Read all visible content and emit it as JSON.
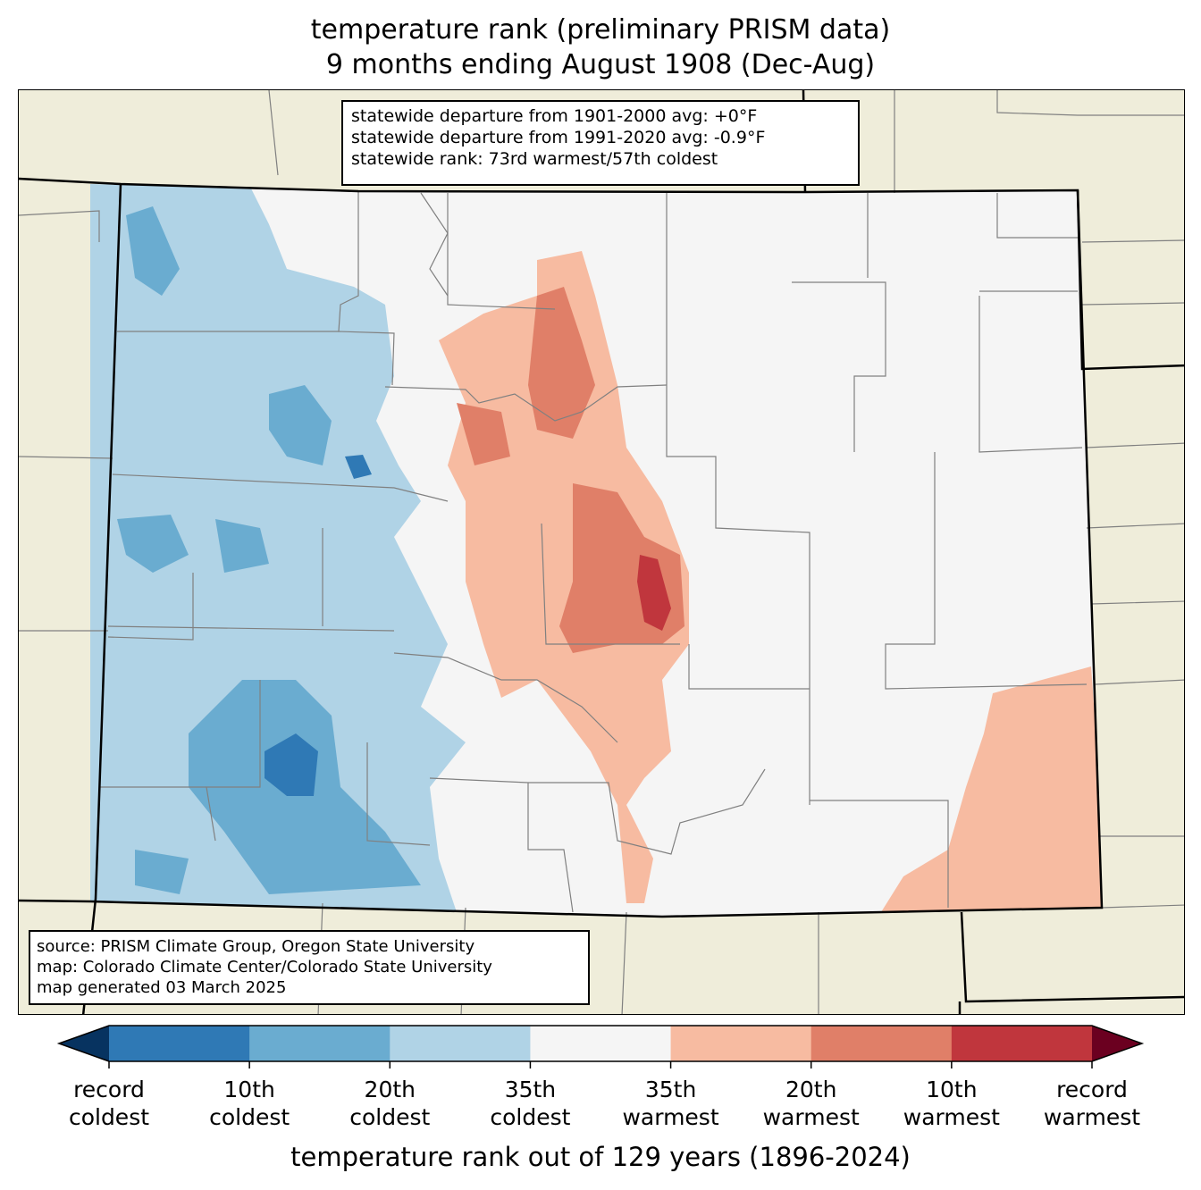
{
  "title": {
    "line1": "temperature rank (preliminary PRISM data)",
    "line2": "9 months ending August 1908 (Dec-Aug)"
  },
  "stats": {
    "line1": "statewide departure from 1901-2000 avg: +0°F",
    "line2": "statewide departure from 1991-2020 avg: -0.9°F",
    "line3": "statewide rank: 73rd warmest/57th coldest"
  },
  "source": {
    "line1": "source: PRISM Climate Group, Oregon State University",
    "line2": "map: Colorado Climate Center/Colorado State University",
    "line3": "map generated 03 March 2025"
  },
  "colorbar": {
    "title": "temperature rank out of 129 years (1896-2024)",
    "ticks": [
      {
        "l1": "record",
        "l2": "coldest"
      },
      {
        "l1": "10th",
        "l2": "coldest"
      },
      {
        "l1": "20th",
        "l2": "coldest"
      },
      {
        "l1": "35th",
        "l2": "coldest"
      },
      {
        "l1": "35th",
        "l2": "warmest"
      },
      {
        "l1": "20th",
        "l2": "warmest"
      },
      {
        "l1": "10th",
        "l2": "warmest"
      },
      {
        "l1": "record",
        "l2": "warmest"
      }
    ],
    "colors": [
      "#2f79b5",
      "#6aacd0",
      "#b0d3e6",
      "#f5f5f5",
      "#f7bba1",
      "#e07f68",
      "#c0363d"
    ],
    "under_color": "#073360",
    "over_color": "#6b0020"
  },
  "map_colors": {
    "land": "#efedda",
    "state_border": "#000000",
    "county_line": "#808080"
  }
}
